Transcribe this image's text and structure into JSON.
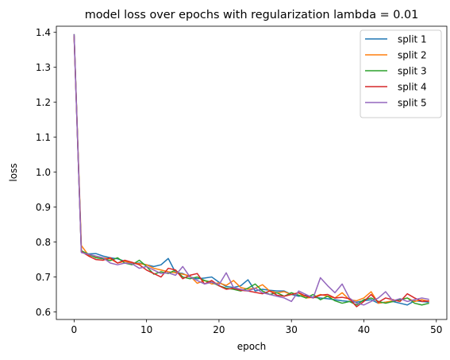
{
  "chart_data": {
    "type": "line",
    "title": "model loss over epochs with regularization lambda = 0.01",
    "xlabel": "epoch",
    "ylabel": "loss",
    "xlim": [
      -2.45,
      51.45
    ],
    "ylim": [
      0.5785,
      1.4175
    ],
    "xticks": [
      0,
      10,
      20,
      30,
      40,
      50
    ],
    "yticks": [
      0.6,
      0.7,
      0.8,
      0.9,
      1.0,
      1.1,
      1.2,
      1.3,
      1.4
    ],
    "ytick_labels": [
      "0.6",
      "0.7",
      "0.8",
      "0.9",
      "1.0",
      "1.1",
      "1.2",
      "1.3",
      "1.4"
    ],
    "grid": false,
    "legend_position": "top-right",
    "x": [
      0,
      1,
      2,
      3,
      4,
      5,
      6,
      7,
      8,
      9,
      10,
      11,
      12,
      13,
      14,
      15,
      16,
      17,
      18,
      19,
      20,
      21,
      22,
      23,
      24,
      25,
      26,
      27,
      28,
      29,
      30,
      31,
      32,
      33,
      34,
      35,
      36,
      37,
      38,
      39,
      40,
      41,
      42,
      43,
      44,
      45,
      46,
      47,
      48,
      49
    ],
    "series": [
      {
        "name": "split 1",
        "color": "#1f77b4",
        "values": [
          1.39,
          0.772,
          0.766,
          0.767,
          0.76,
          0.755,
          0.752,
          0.745,
          0.738,
          0.74,
          0.735,
          0.73,
          0.735,
          0.753,
          0.713,
          0.71,
          0.7,
          0.695,
          0.697,
          0.7,
          0.685,
          0.673,
          0.67,
          0.675,
          0.692,
          0.66,
          0.665,
          0.662,
          0.66,
          0.66,
          0.65,
          0.645,
          0.648,
          0.642,
          0.64,
          0.638,
          0.635,
          0.632,
          0.63,
          0.628,
          0.632,
          0.635,
          0.625,
          0.628,
          0.63,
          0.625,
          0.62,
          0.632,
          0.63,
          0.628
        ]
      },
      {
        "name": "split 2",
        "color": "#ff7f0e",
        "values": [
          1.393,
          0.79,
          0.762,
          0.758,
          0.755,
          0.752,
          0.74,
          0.745,
          0.74,
          0.738,
          0.735,
          0.725,
          0.72,
          0.715,
          0.712,
          0.708,
          0.703,
          0.682,
          0.69,
          0.68,
          0.683,
          0.676,
          0.69,
          0.67,
          0.665,
          0.668,
          0.678,
          0.66,
          0.655,
          0.658,
          0.65,
          0.655,
          0.64,
          0.642,
          0.65,
          0.645,
          0.64,
          0.655,
          0.635,
          0.632,
          0.64,
          0.658,
          0.625,
          0.628,
          0.632,
          0.635,
          0.64,
          0.63,
          0.635,
          0.63
        ]
      },
      {
        "name": "split 3",
        "color": "#2ca02c",
        "values": [
          1.395,
          0.775,
          0.765,
          0.755,
          0.752,
          0.747,
          0.755,
          0.74,
          0.735,
          0.748,
          0.73,
          0.708,
          0.715,
          0.71,
          0.72,
          0.7,
          0.695,
          0.7,
          0.69,
          0.685,
          0.675,
          0.668,
          0.665,
          0.66,
          0.668,
          0.68,
          0.66,
          0.65,
          0.655,
          0.645,
          0.655,
          0.648,
          0.64,
          0.65,
          0.635,
          0.645,
          0.632,
          0.625,
          0.63,
          0.62,
          0.635,
          0.64,
          0.63,
          0.625,
          0.63,
          0.635,
          0.64,
          0.625,
          0.62,
          0.625
        ]
      },
      {
        "name": "split 4",
        "color": "#d62728",
        "values": [
          1.39,
          0.773,
          0.76,
          0.75,
          0.748,
          0.755,
          0.74,
          0.748,
          0.742,
          0.735,
          0.72,
          0.71,
          0.7,
          0.725,
          0.72,
          0.695,
          0.705,
          0.71,
          0.68,
          0.69,
          0.675,
          0.665,
          0.668,
          0.662,
          0.66,
          0.656,
          0.652,
          0.66,
          0.648,
          0.645,
          0.65,
          0.655,
          0.645,
          0.64,
          0.648,
          0.65,
          0.64,
          0.642,
          0.638,
          0.615,
          0.63,
          0.65,
          0.628,
          0.64,
          0.635,
          0.63,
          0.652,
          0.64,
          0.63,
          0.632
        ]
      },
      {
        "name": "split 5",
        "color": "#9467bd",
        "values": [
          1.395,
          0.77,
          0.765,
          0.76,
          0.755,
          0.74,
          0.735,
          0.74,
          0.738,
          0.725,
          0.73,
          0.72,
          0.71,
          0.712,
          0.705,
          0.73,
          0.7,
          0.69,
          0.68,
          0.685,
          0.678,
          0.712,
          0.67,
          0.665,
          0.66,
          0.668,
          0.655,
          0.65,
          0.645,
          0.64,
          0.63,
          0.66,
          0.65,
          0.64,
          0.698,
          0.675,
          0.655,
          0.68,
          0.64,
          0.625,
          0.62,
          0.63,
          0.64,
          0.658,
          0.632,
          0.638,
          0.63,
          0.635,
          0.64,
          0.636
        ]
      }
    ]
  }
}
